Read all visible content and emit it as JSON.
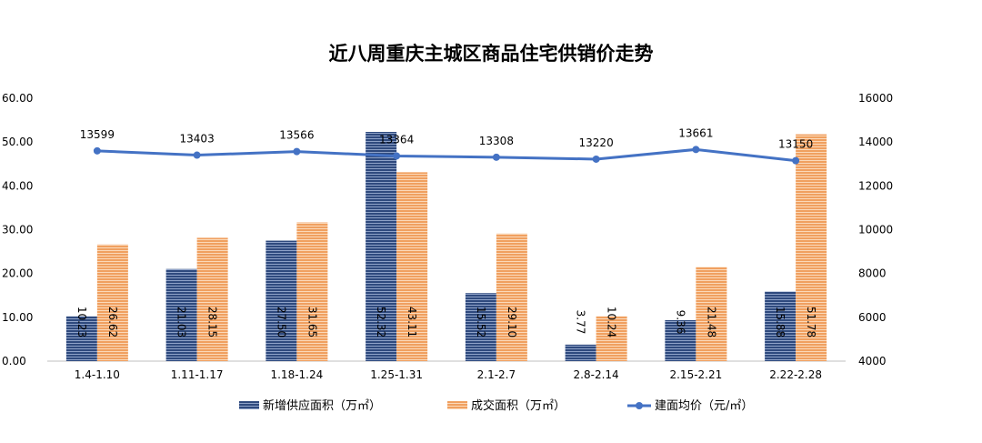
{
  "chart_data": {
    "type": "bar",
    "title": "近八周重庆主城区商品住宅供销价走势",
    "categories": [
      "1.4-1.10",
      "1.11-1.17",
      "1.18-1.24",
      "1.25-1.31",
      "2.1-2.7",
      "2.8-2.14",
      "2.15-2.21",
      "2.22-2.28"
    ],
    "series": [
      {
        "name": "新增供应面积（万㎡）",
        "axis": "left",
        "kind": "bar",
        "color": "#2f4a7e",
        "values": [
          10.23,
          21.03,
          27.5,
          52.32,
          15.52,
          3.77,
          9.36,
          15.88
        ],
        "labels": [
          "10.23",
          "21.03",
          "27.50",
          "52.32",
          "15.52",
          "3.77",
          "9.36",
          "15.88"
        ]
      },
      {
        "name": "成交面积（万㎡）",
        "axis": "left",
        "kind": "bar",
        "color": "#f0a060",
        "values": [
          26.62,
          28.15,
          31.65,
          43.11,
          29.1,
          10.24,
          21.48,
          51.78
        ],
        "labels": [
          "26.62",
          "28.15",
          "31.65",
          "43.11",
          "29.10",
          "10.24",
          "21.48",
          "51.78"
        ]
      },
      {
        "name": "建面均价（元/㎡）",
        "axis": "right",
        "kind": "line",
        "color": "#4472c4",
        "values": [
          13599,
          13403,
          13566,
          13364,
          13308,
          13220,
          13661,
          13150
        ],
        "labels": [
          "13599",
          "13403",
          "13566",
          "13364",
          "13308",
          "13220",
          "13661",
          "13150"
        ]
      }
    ],
    "y_left": {
      "min": 0,
      "max": 60,
      "ticks": [
        "0.00",
        "10.00",
        "20.00",
        "30.00",
        "40.00",
        "50.00",
        "60.00"
      ]
    },
    "y_right": {
      "min": 4000,
      "max": 16000,
      "ticks": [
        "4000",
        "6000",
        "8000",
        "10000",
        "12000",
        "14000",
        "16000"
      ]
    },
    "grid": false,
    "legend_position": "bottom"
  }
}
